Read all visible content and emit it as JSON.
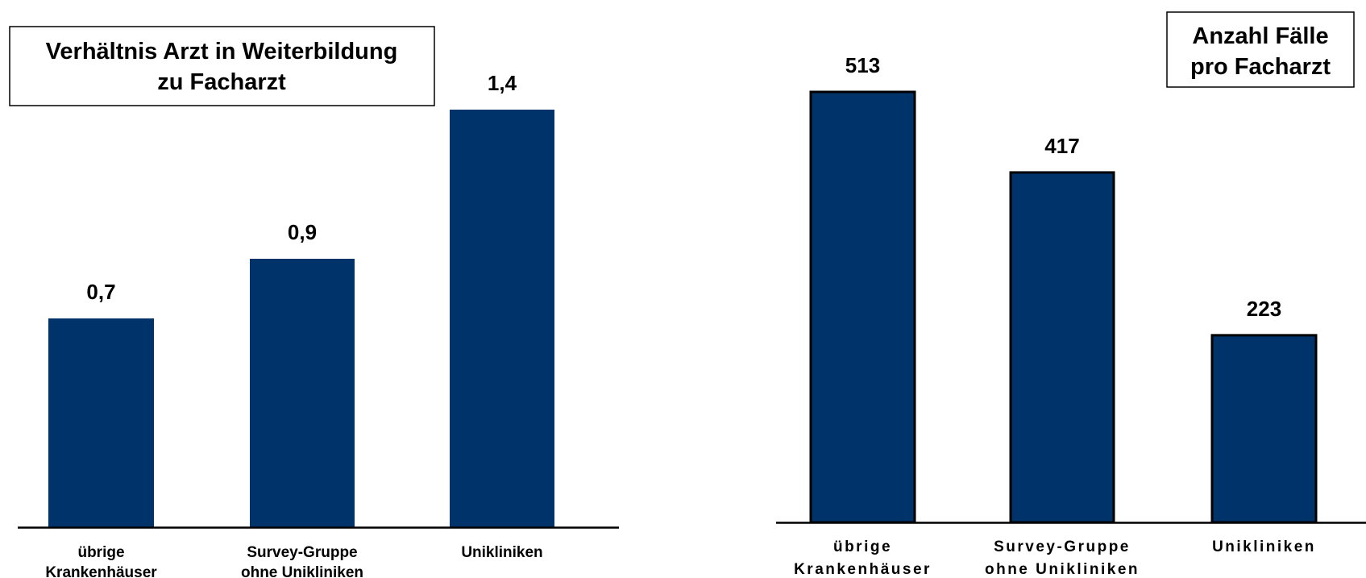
{
  "chart_data": [
    {
      "type": "bar",
      "title": [
        "Verhältnis Arzt in Weiterbildung",
        "zu Facharzt"
      ],
      "categories": [
        [
          "übrige",
          "Krankenhäuser"
        ],
        [
          "Survey-Gruppe",
          "ohne Unikliniken"
        ],
        [
          "Unikliniken"
        ]
      ],
      "values": [
        0.7,
        0.9,
        1.4
      ],
      "value_labels": [
        "0,7",
        "0,9",
        "1,4"
      ],
      "ylim": [
        0,
        1.4
      ],
      "grid": false,
      "bar_color": "#00336a"
    },
    {
      "type": "bar",
      "title": [
        "Anzahl Fälle",
        "pro Facharzt"
      ],
      "categories": [
        [
          "übrige",
          "Krankenhäuser"
        ],
        [
          "Survey-Gruppe",
          "ohne Unikliniken"
        ],
        [
          "Unikliniken"
        ]
      ],
      "values": [
        513,
        417,
        223
      ],
      "value_labels": [
        "513",
        "417",
        "223"
      ],
      "ylim": [
        0,
        513
      ],
      "grid": false,
      "bar_color": "#00336a"
    }
  ]
}
